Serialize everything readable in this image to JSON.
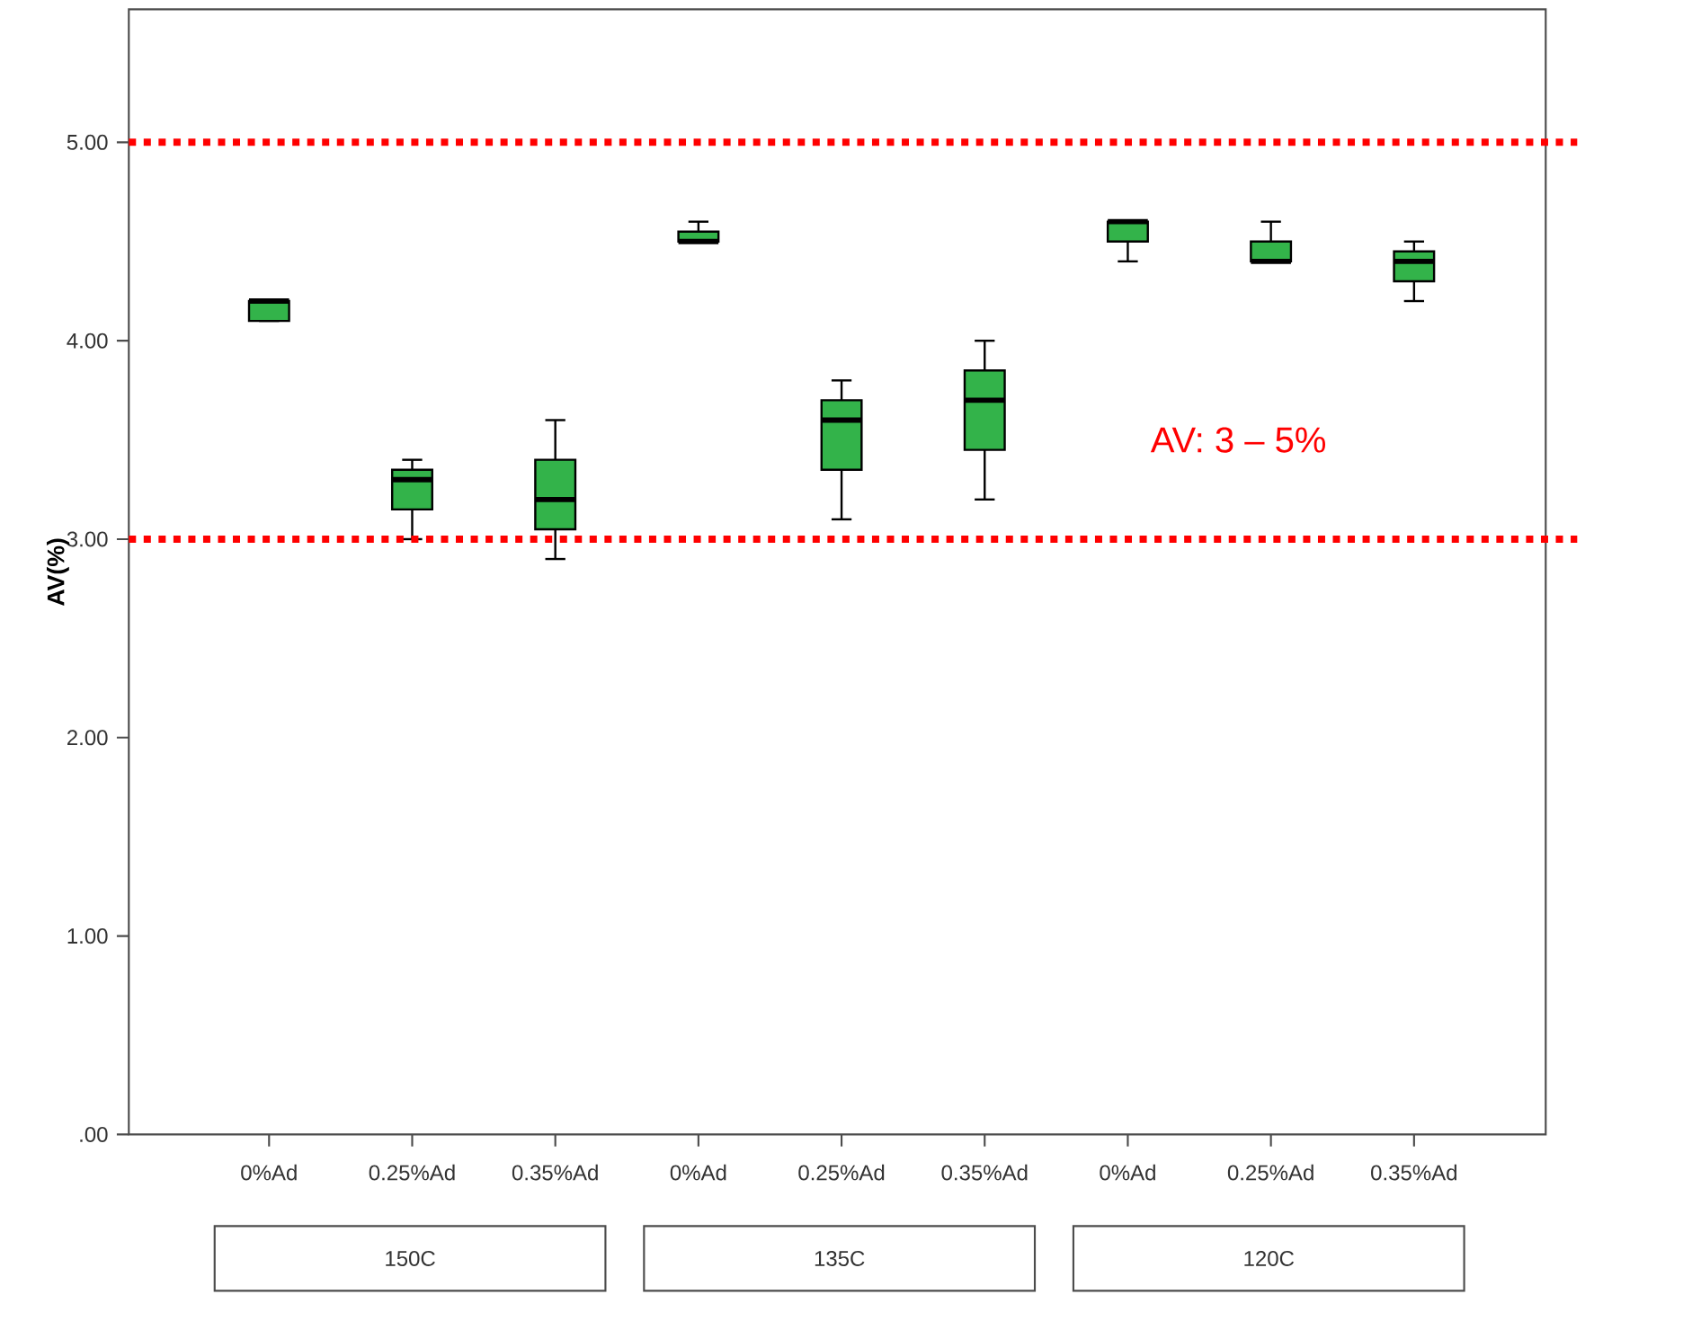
{
  "chart_data": {
    "type": "box",
    "ylabel": "AV(%)",
    "categories": [
      "0%Ad",
      "0.25%Ad",
      "0.35%Ad",
      "0%Ad",
      "0.25%Ad",
      "0.35%Ad",
      "0%Ad",
      "0.25%Ad",
      "0.35%Ad"
    ],
    "color": "#33b34a",
    "boxes": [
      {
        "low": 4.1,
        "q1": 4.1,
        "median": 4.2,
        "q3": 4.2,
        "high": 4.2
      },
      {
        "low": 3.0,
        "q1": 3.15,
        "median": 3.3,
        "q3": 3.35,
        "high": 3.4
      },
      {
        "low": 2.9,
        "q1": 3.05,
        "median": 3.2,
        "q3": 3.4,
        "high": 3.6
      },
      {
        "low": 4.5,
        "q1": 4.5,
        "median": 4.5,
        "q3": 4.55,
        "high": 4.6
      },
      {
        "low": 3.1,
        "q1": 3.35,
        "median": 3.6,
        "q3": 3.7,
        "high": 3.8
      },
      {
        "low": 3.2,
        "q1": 3.45,
        "median": 3.7,
        "q3": 3.85,
        "high": 4.0
      },
      {
        "low": 4.4,
        "q1": 4.5,
        "median": 4.6,
        "q3": 4.6,
        "high": 4.6
      },
      {
        "low": 4.4,
        "q1": 4.4,
        "median": 4.4,
        "q3": 4.5,
        "high": 4.6
      },
      {
        "low": 4.2,
        "q1": 4.3,
        "median": 4.4,
        "q3": 4.45,
        "high": 4.5
      }
    ],
    "ylim": [
      0,
      5.67
    ],
    "yticks": [
      {
        "value": 0,
        "label": ".00"
      },
      {
        "value": 1,
        "label": "1.00"
      },
      {
        "value": 2,
        "label": "2.00"
      },
      {
        "value": 3,
        "label": "3.00"
      },
      {
        "value": 4,
        "label": "4.00"
      },
      {
        "value": 5,
        "label": "5.00"
      }
    ],
    "ref_lines": [
      {
        "axis": "y",
        "value": 3,
        "color": "#ff0000",
        "line_style": "dotted"
      },
      {
        "axis": "y",
        "value": 5,
        "color": "#ff0000",
        "line_style": "dotted"
      }
    ],
    "annotations": [
      "150C",
      "135C",
      "120C",
      "AV: 3 – 5%"
    ]
  }
}
